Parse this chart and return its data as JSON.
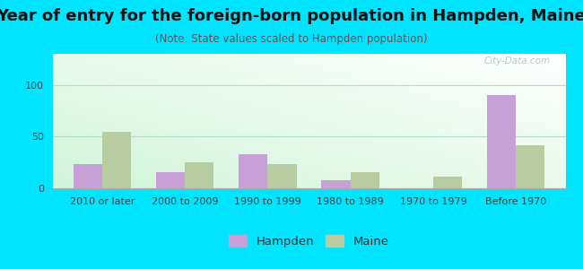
{
  "title": "Year of entry for the foreign-born population in Hampden, Maine",
  "subtitle": "(Note: State values scaled to Hampden population)",
  "categories": [
    "2010 or later",
    "2000 to 2009",
    "1990 to 1999",
    "1980 to 1989",
    "1970 to 1979",
    "Before 1970"
  ],
  "hampden_values": [
    23,
    16,
    33,
    8,
    0,
    90
  ],
  "maine_values": [
    55,
    25,
    23,
    16,
    11,
    42
  ],
  "hampden_color": "#c8a0d8",
  "maine_color": "#b8cca0",
  "background_color": "#00e5ff",
  "ylim": [
    0,
    130
  ],
  "yticks": [
    0,
    50,
    100
  ],
  "bar_width": 0.35,
  "title_fontsize": 13,
  "subtitle_fontsize": 8.5,
  "tick_fontsize": 8,
  "legend_fontsize": 9.5,
  "watermark_text": "City-Data.com"
}
